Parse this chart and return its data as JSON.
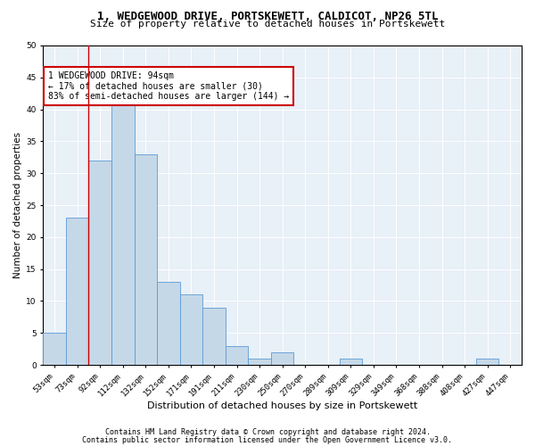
{
  "title1": "1, WEDGEWOOD DRIVE, PORTSKEWETT, CALDICOT, NP26 5TL",
  "title2": "Size of property relative to detached houses in Portskewett",
  "xlabel": "Distribution of detached houses by size in Portskewett",
  "ylabel": "Number of detached properties",
  "categories": [
    "53sqm",
    "73sqm",
    "92sqm",
    "112sqm",
    "132sqm",
    "152sqm",
    "171sqm",
    "191sqm",
    "211sqm",
    "230sqm",
    "250sqm",
    "270sqm",
    "289sqm",
    "309sqm",
    "329sqm",
    "349sqm",
    "368sqm",
    "388sqm",
    "408sqm",
    "427sqm",
    "447sqm"
  ],
  "values": [
    5,
    23,
    32,
    41,
    33,
    13,
    11,
    9,
    3,
    1,
    2,
    0,
    0,
    1,
    0,
    0,
    0,
    0,
    0,
    1,
    0
  ],
  "bar_color": "#c5d8e8",
  "bar_edge_color": "#5b9bd5",
  "bg_color": "#e8f0f8",
  "annotation_box_color": "#cc0000",
  "vline_color": "#cc0000",
  "vline_x": 1.5,
  "annotation_text": "1 WEDGEWOOD DRIVE: 94sqm\n← 17% of detached houses are smaller (30)\n83% of semi-detached houses are larger (144) →",
  "ylim": [
    0,
    50
  ],
  "yticks": [
    0,
    5,
    10,
    15,
    20,
    25,
    30,
    35,
    40,
    45,
    50
  ],
  "footnote1": "Contains HM Land Registry data © Crown copyright and database right 2024.",
  "footnote2": "Contains public sector information licensed under the Open Government Licence v3.0.",
  "title1_fontsize": 9,
  "title2_fontsize": 8,
  "xlabel_fontsize": 8,
  "ylabel_fontsize": 7.5,
  "tick_fontsize": 6.5,
  "annotation_fontsize": 7,
  "footnote_fontsize": 6
}
